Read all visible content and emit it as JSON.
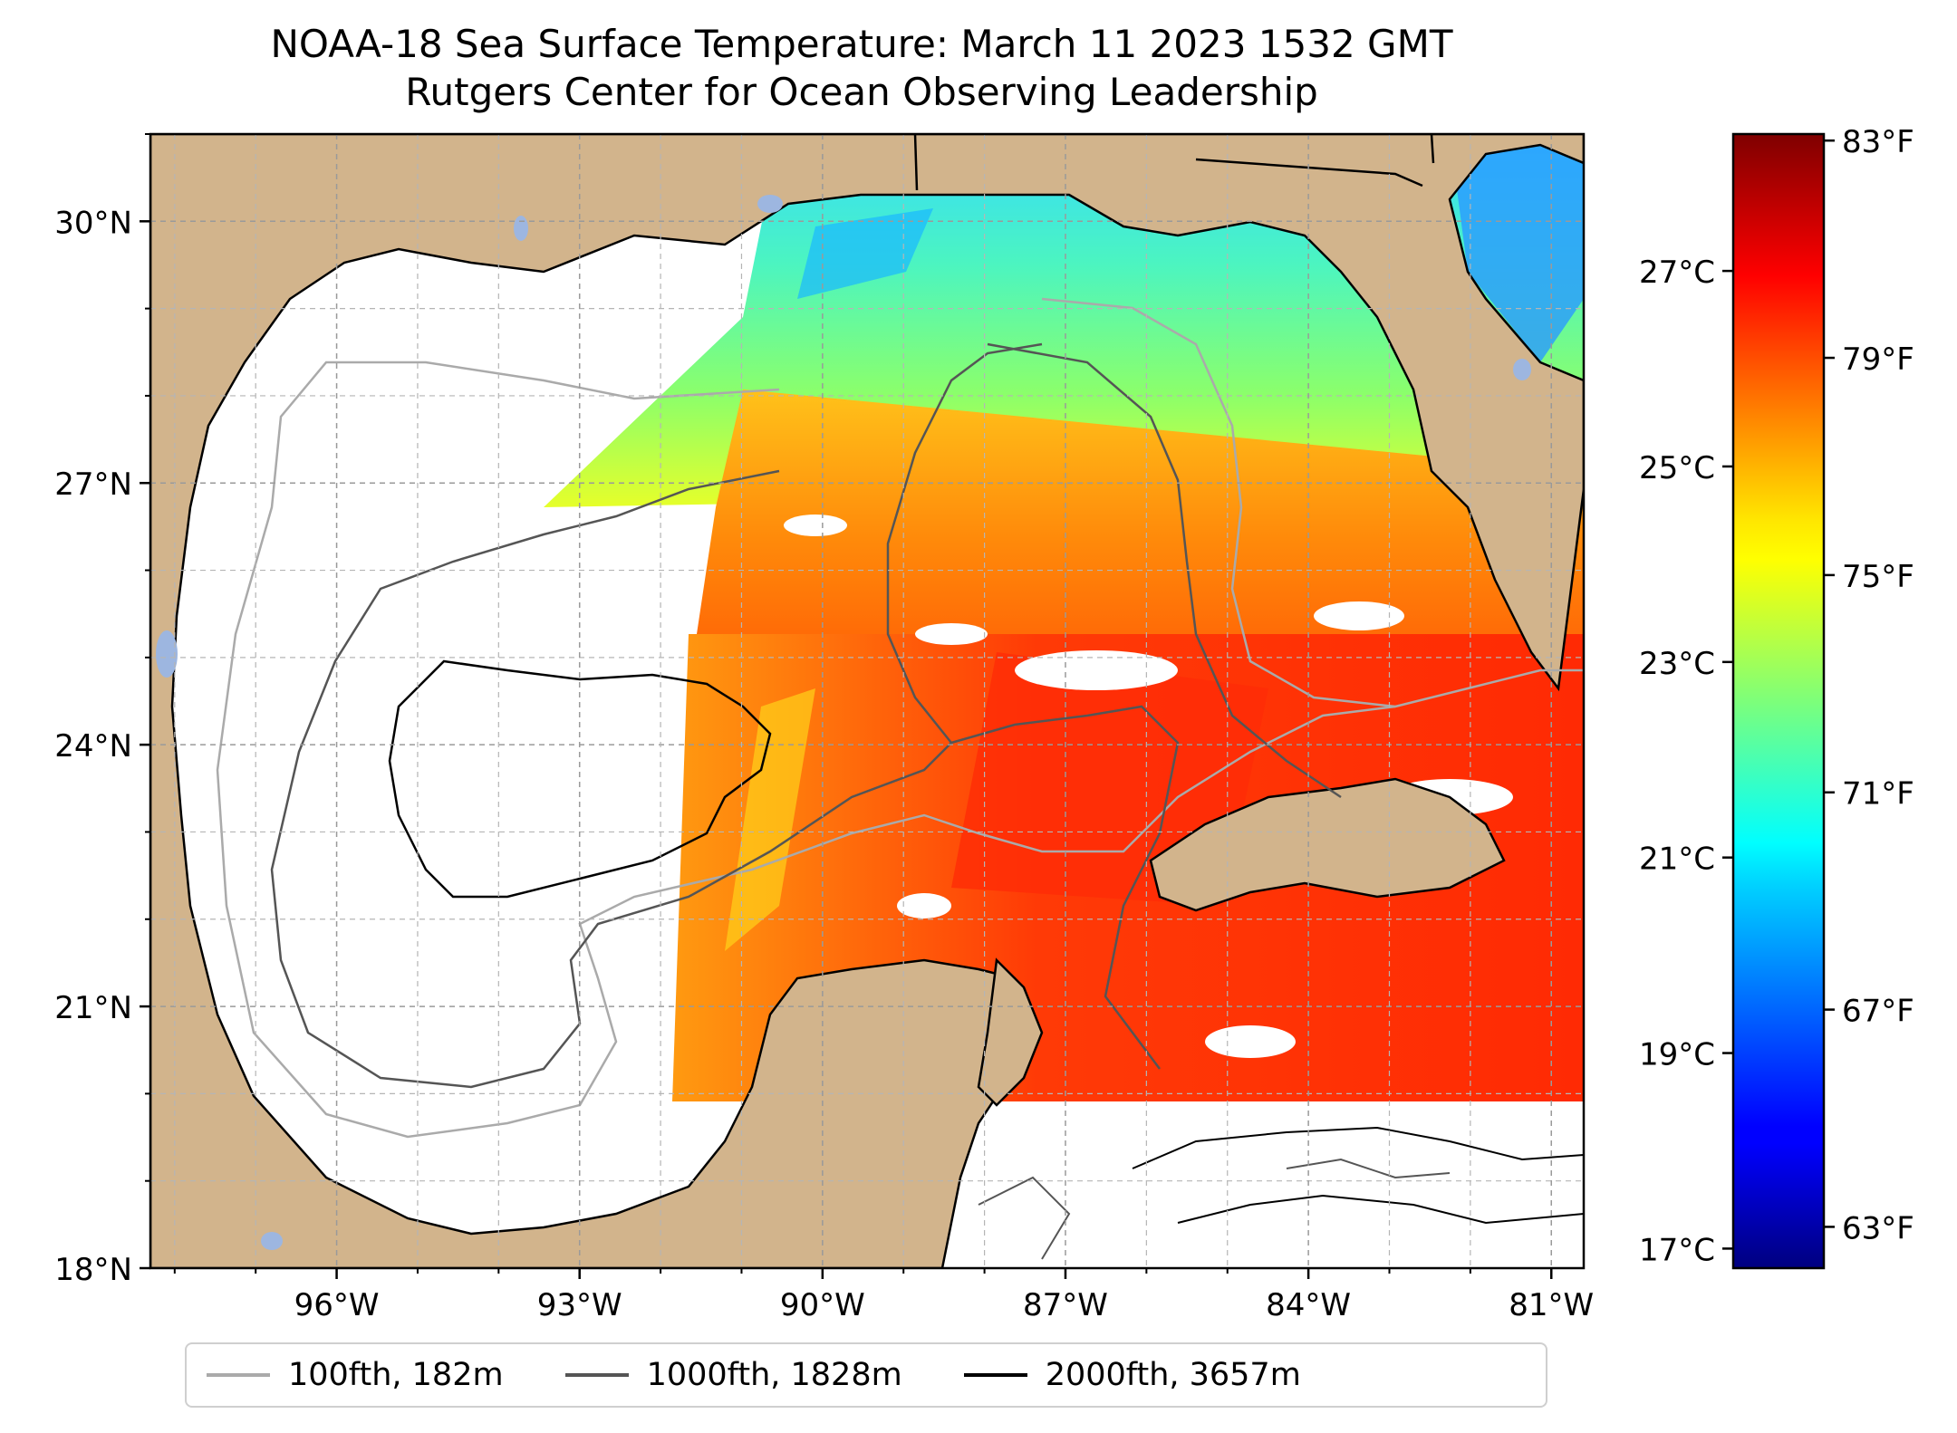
{
  "title": "NOAA-18 Sea Surface Temperature: March 11 2023 1532 GMT",
  "subtitle": "Rutgers Center for Ocean Observing Leadership",
  "map": {
    "lon_range": [
      -98.3,
      -80.6
    ],
    "lat_range": [
      18.0,
      31.0
    ],
    "lat_ticks": [
      {
        "value": 30,
        "label": "30°N"
      },
      {
        "value": 27,
        "label": "27°N"
      },
      {
        "value": 24,
        "label": "24°N"
      },
      {
        "value": 21,
        "label": "21°N"
      },
      {
        "value": 18,
        "label": "18°N"
      }
    ],
    "lon_ticks": [
      {
        "value": -96,
        "label": "96°W"
      },
      {
        "value": -93,
        "label": "93°W"
      },
      {
        "value": -90,
        "label": "90°W"
      },
      {
        "value": -87,
        "label": "87°W"
      },
      {
        "value": -84,
        "label": "84°W"
      },
      {
        "value": -81,
        "label": "81°W"
      }
    ],
    "gridlines": true,
    "colors": {
      "land": "#d2b48c",
      "lakes": "#9db6e0",
      "ocean_nodata": "#ffffff"
    }
  },
  "colorbar": {
    "colormap": "jet",
    "range_c": [
      16.8,
      28.4
    ],
    "celsius_ticks": [
      {
        "value": 27,
        "label": "27°C"
      },
      {
        "value": 25,
        "label": "25°C"
      },
      {
        "value": 23,
        "label": "23°C"
      },
      {
        "value": 21,
        "label": "21°C"
      },
      {
        "value": 19,
        "label": "19°C"
      },
      {
        "value": 17,
        "label": "17°C"
      }
    ],
    "fahrenheit_ticks": [
      {
        "value": 83,
        "label": "83°F"
      },
      {
        "value": 79,
        "label": "79°F"
      },
      {
        "value": 75,
        "label": "75°F"
      },
      {
        "value": 71,
        "label": "71°F"
      },
      {
        "value": 67,
        "label": "67°F"
      },
      {
        "value": 63,
        "label": "63°F"
      }
    ]
  },
  "legend": {
    "placement": "bottom-center",
    "items": [
      {
        "label": "100fth, 182m",
        "color": "#aaaaaa"
      },
      {
        "label": "1000fth, 1828m",
        "color": "#555555"
      },
      {
        "label": "2000fth, 3657m",
        "color": "#000000"
      }
    ]
  }
}
